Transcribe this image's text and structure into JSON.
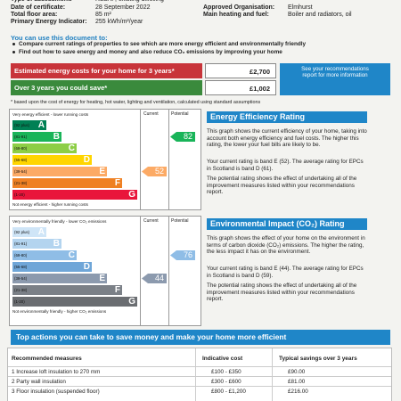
{
  "details": [
    [
      [
        "Type of assessment:",
        "RdSAP, existing dwelling"
      ]
    ],
    [
      [
        "Date of certificate:",
        "28 September 2022"
      ],
      [
        "Approved Organisation:",
        "Elmhurst"
      ]
    ],
    [
      [
        "Total floor area:",
        "85 m²"
      ],
      [
        "Main heating and fuel:",
        "Boiler and radiators, oil"
      ]
    ],
    [
      [
        "Primary Energy Indicator:",
        "255 kWh/m²/year"
      ]
    ]
  ],
  "intro": {
    "title": "You can use this document to:",
    "bullets": [
      "Compare current ratings of properties to see which are more energy efficient and environmentally friendly",
      "Find out how to save energy and money and also reduce CO₂ emissions by improving your home"
    ]
  },
  "costs": {
    "rows": [
      [
        "Estimated energy costs for your home for 3 years*",
        "£2,700"
      ],
      [
        "Over 3 years you could save*",
        "£1,002"
      ]
    ],
    "note_box": "See your recommendations report for more information",
    "footnote": "* based upon the cost of energy for heating, hot water, lighting and ventilation, calculated using standard assumptions"
  },
  "ratings": [
    {
      "heading_top": "Very energy efficient - lower running costs",
      "heading_bottom": "Not energy efficient - higher running costs",
      "columns": [
        "Current",
        "Potential"
      ],
      "bands": [
        [
          "(92 plus)",
          "A"
        ],
        [
          "(81-91)",
          "B"
        ],
        [
          "(69-80)",
          "C"
        ],
        [
          "(55-68)",
          "D"
        ],
        [
          "(39-54)",
          "E"
        ],
        [
          "(21-38)",
          "F"
        ],
        [
          "(1-20)",
          "G"
        ]
      ],
      "colors": [
        "#008054",
        "#19b459",
        "#8dce46",
        "#ffd500",
        "#fcaa65",
        "#ef8023",
        "#e9153b"
      ],
      "current": 52,
      "potential": 82,
      "title": "Energy Efficiency Rating",
      "paragraphs": [
        "This graph shows the current efficiency of your home, taking into account both energy efficiency and fuel costs. The higher this rating, the lower your fuel bills are likely to be.",
        "Your current rating is band E (52). The average rating for EPCs in Scotland is band D (61).",
        "The potential rating shows the effect of undertaking all of the improvement measures listed within your recommendations report."
      ]
    },
    {
      "heading_top": "Very environmentally friendly - lower CO₂ emissions",
      "heading_bottom": "Not environmentally friendly - higher CO₂ emissions",
      "columns": [
        "Current",
        "Potential"
      ],
      "bands": [
        [
          "(92 plus)",
          "A"
        ],
        [
          "(81-91)",
          "B"
        ],
        [
          "(69-80)",
          "C"
        ],
        [
          "(55-68)",
          "D"
        ],
        [
          "(39-54)",
          "E"
        ],
        [
          "(21-38)",
          "F"
        ],
        [
          "(1-20)",
          "G"
        ]
      ],
      "colors": [
        "#cfe5f7",
        "#b3d4ef",
        "#8fbde6",
        "#6fa6d8",
        "#8c9aae",
        "#7b8087",
        "#6a6d71"
      ],
      "current": 44,
      "potential": 76,
      "title": "Environmental Impact (CO₂) Rating",
      "paragraphs": [
        "This graph shows the effect of your home on the environment in terms of carbon dioxide (CO₂) emissions. The higher the rating, the less impact it has on the environment.",
        "Your current rating is band E (44). The average rating for EPCs in Scotland is band D (59).",
        "The potential rating shows the effect of undertaking all of the improvement measures listed within your recommendations report."
      ]
    }
  ],
  "actions": {
    "title": "Top actions you can take to save money and make your home more efficient",
    "columns": [
      "Recommended measures",
      "Indicative cost",
      "Typical savings over 3 years"
    ],
    "rows": [
      [
        "1 Increase loft insulation to 270 mm",
        "£100 - £350",
        "£90.00"
      ],
      [
        "2 Party wall insulation",
        "£300 - £600",
        "£81.00"
      ],
      [
        "3 Floor insulation (suspended floor)",
        "£800 - £1,200",
        "£216.00"
      ]
    ]
  }
}
